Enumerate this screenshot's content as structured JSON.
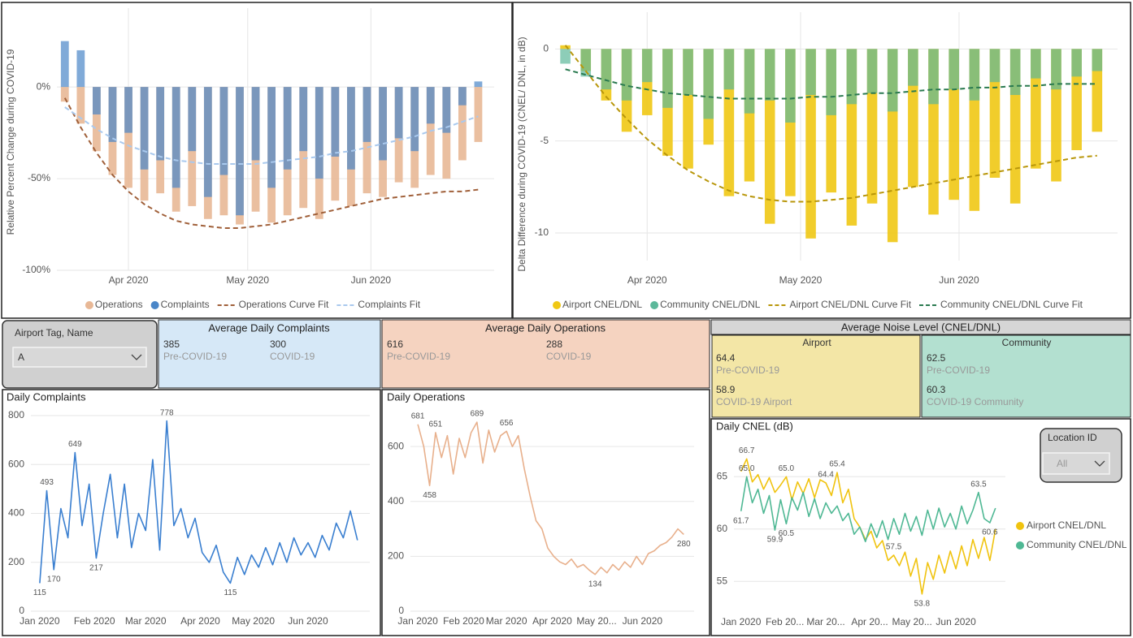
{
  "chart_data": [
    {
      "type": "bar",
      "ylabel": "Relative Percent Change during COVID-19",
      "x": [
        76,
        80,
        84,
        88,
        92,
        96,
        100,
        104,
        108,
        112,
        116,
        120,
        124,
        128,
        132,
        136,
        140,
        144,
        148,
        152,
        156,
        160,
        164,
        168,
        172,
        176,
        180
      ],
      "xlim": [
        74,
        184
      ],
      "xticks": [
        {
          "value": 92,
          "label": "Apr 2020"
        },
        {
          "value": 122,
          "label": "May 2020"
        },
        {
          "value": 153,
          "label": "Jun 2020"
        }
      ],
      "ylim": [
        -100,
        43
      ],
      "yticks": [
        {
          "value": 0,
          "label": "0%"
        },
        {
          "value": -50,
          "label": "-50%"
        },
        {
          "value": -100,
          "label": "-100%"
        }
      ],
      "grid": true,
      "xgrid": true,
      "legend": "bottom",
      "series": [
        {
          "name": "Operations",
          "type": "bar",
          "color": "#e8b896",
          "values": [
            -8,
            -20,
            -35,
            -48,
            -55,
            -62,
            -58,
            -68,
            -65,
            -72,
            -70,
            -75,
            -68,
            -74,
            -70,
            -66,
            -72,
            -62,
            -65,
            -58,
            -60,
            -52,
            -55,
            -48,
            -50,
            -40,
            -30
          ]
        },
        {
          "name": "Complaints",
          "type": "bar",
          "color": "#4a86c8",
          "values": [
            25,
            20,
            -15,
            -30,
            -25,
            -45,
            -40,
            -55,
            -35,
            -60,
            -48,
            -70,
            -40,
            -55,
            -45,
            -35,
            -50,
            -38,
            -45,
            -30,
            -40,
            -28,
            -35,
            -20,
            -25,
            -10,
            3
          ]
        },
        {
          "name": "Operations Curve Fit",
          "type": "line",
          "dashed": true,
          "color": "#a0603a",
          "values": [
            -6,
            -22,
            -36,
            -48,
            -57,
            -64,
            -69,
            -73,
            -75,
            -76,
            -77,
            -77,
            -76,
            -75,
            -73,
            -71,
            -69,
            -67,
            -65,
            -63,
            -61,
            -60,
            -59,
            -58,
            -57,
            -57,
            -56
          ]
        },
        {
          "name": "Complaints Fit",
          "type": "line",
          "dashed": true,
          "color": "#a9c9ee",
          "values": [
            -11,
            -17,
            -23,
            -28,
            -32,
            -35,
            -38,
            -40,
            -41,
            -42,
            -42,
            -42,
            -42,
            -41,
            -40,
            -39,
            -38,
            -36,
            -35,
            -33,
            -31,
            -29,
            -27,
            -24,
            -22,
            -19,
            -16
          ]
        }
      ]
    },
    {
      "type": "bar",
      "ylabel": "Delta Difference during COVID-19 (CNEL/ DNL, in dB)",
      "x": [
        76,
        80,
        84,
        88,
        92,
        96,
        100,
        104,
        108,
        112,
        116,
        120,
        124,
        128,
        132,
        136,
        140,
        144,
        148,
        152,
        156,
        160,
        164,
        168,
        172,
        176,
        180
      ],
      "xlim": [
        74,
        184
      ],
      "xticks": [
        {
          "value": 92,
          "label": "Apr 2020"
        },
        {
          "value": 122,
          "label": "May 2020"
        },
        {
          "value": 153,
          "label": "Jun 2020"
        }
      ],
      "ylim": [
        -11.5,
        2
      ],
      "yticks": [
        0,
        -5,
        -10
      ],
      "grid": true,
      "xgrid": true,
      "legend": "bottom",
      "series": [
        {
          "name": "Airport CNEL/DNL",
          "type": "bar",
          "color": "#f0c814",
          "values": [
            0.2,
            -1.2,
            -2.8,
            -4.5,
            -3.6,
            -5.8,
            -6.5,
            -5.2,
            -8,
            -7.2,
            -9.5,
            -8,
            -10.3,
            -7.8,
            -9.6,
            -8.4,
            -10.5,
            -7.5,
            -9,
            -8.2,
            -8.8,
            -7,
            -8.4,
            -6.5,
            -7.2,
            -5.5,
            -4.5
          ]
        },
        {
          "name": "Community CNEL/DNL",
          "type": "bar",
          "color": "#5cb89a",
          "values": [
            -0.8,
            -1.5,
            -2.2,
            -2.8,
            -1.8,
            -3.2,
            -2.5,
            -3.8,
            -2.2,
            -3.5,
            -2.8,
            -4,
            -2.5,
            -3.6,
            -3,
            -2.4,
            -3.4,
            -2,
            -3,
            -2.2,
            -2.8,
            -1.8,
            -2.5,
            -1.6,
            -2.2,
            -1.5,
            -1.2
          ]
        },
        {
          "name": "Airport CNEL/DNL Curve Fit",
          "type": "line",
          "dashed": true,
          "color": "#b8960a",
          "values": [
            0.2,
            -1.2,
            -2.6,
            -3.8,
            -4.9,
            -5.8,
            -6.6,
            -7.2,
            -7.7,
            -8,
            -8.2,
            -8.3,
            -8.3,
            -8.2,
            -8.1,
            -7.9,
            -7.7,
            -7.5,
            -7.3,
            -7.1,
            -6.9,
            -6.7,
            -6.5,
            -6.3,
            -6.1,
            -5.9,
            -5.8
          ]
        },
        {
          "name": "Community CNEL/DNL Curve Fit",
          "type": "line",
          "dashed": true,
          "color": "#2a7a50",
          "values": [
            -1.1,
            -1.4,
            -1.7,
            -2,
            -2.2,
            -2.4,
            -2.5,
            -2.6,
            -2.7,
            -2.7,
            -2.7,
            -2.7,
            -2.6,
            -2.6,
            -2.5,
            -2.4,
            -2.4,
            -2.3,
            -2.2,
            -2.2,
            -2.1,
            -2.1,
            -2,
            -2,
            -1.9,
            -1.9,
            -1.9
          ]
        }
      ]
    },
    {
      "type": "line",
      "title": "Daily Complaints",
      "x": [
        1,
        5,
        9,
        13,
        17,
        21,
        25,
        29,
        33,
        37,
        41,
        45,
        49,
        53,
        57,
        61,
        65,
        69,
        73,
        77,
        81,
        85,
        89,
        93,
        97,
        101,
        105,
        109,
        113,
        117,
        121,
        125,
        129,
        133,
        137,
        141,
        145,
        149,
        153,
        157,
        161,
        165,
        169,
        173,
        177,
        181
      ],
      "xlim": [
        -4,
        188
      ],
      "xticks": [
        {
          "value": 1,
          "label": "Jan 2020"
        },
        {
          "value": 32,
          "label": "Feb 2020"
        },
        {
          "value": 61,
          "label": "Mar 2020"
        },
        {
          "value": 92,
          "label": "Apr 2020"
        },
        {
          "value": 122,
          "label": "May 2020"
        },
        {
          "value": 153,
          "label": "Jun 2020"
        }
      ],
      "ylim": [
        0,
        800
      ],
      "yticks": [
        0,
        200,
        400,
        600,
        800
      ],
      "grid": true,
      "series": [
        {
          "color": "#3a7fd0",
          "values": [
            115,
            493,
            170,
            420,
            300,
            649,
            350,
            520,
            217,
            400,
            560,
            300,
            520,
            260,
            400,
            330,
            620,
            250,
            778,
            350,
            420,
            300,
            380,
            240,
            200,
            270,
            160,
            115,
            220,
            150,
            230,
            180,
            260,
            190,
            280,
            200,
            300,
            230,
            280,
            220,
            310,
            250,
            360,
            300,
            410,
            290
          ],
          "value_labels": [
            "115",
            "493",
            "170",
            null,
            null,
            "649",
            null,
            null,
            "217",
            null,
            null,
            null,
            null,
            null,
            null,
            null,
            null,
            null,
            "778",
            null,
            null,
            null,
            null,
            null,
            null,
            null,
            null,
            "115",
            null,
            null,
            null,
            null,
            null,
            null,
            null,
            null,
            null,
            null,
            null,
            null,
            null,
            null,
            null,
            null,
            null,
            null
          ]
        }
      ]
    },
    {
      "type": "line",
      "title": "Daily Operations",
      "x": [
        1,
        5,
        9,
        13,
        17,
        21,
        25,
        29,
        33,
        37,
        41,
        45,
        49,
        53,
        57,
        61,
        65,
        69,
        73,
        77,
        81,
        85,
        89,
        93,
        97,
        101,
        105,
        109,
        113,
        117,
        121,
        125,
        129,
        133,
        137,
        141,
        145,
        149,
        153,
        157,
        161,
        165,
        169,
        173,
        177,
        181
      ],
      "xlim": [
        -4,
        188
      ],
      "xticks": [
        {
          "value": 1,
          "label": "Jan 2020"
        },
        {
          "value": 32,
          "label": "Feb 2020"
        },
        {
          "value": 61,
          "label": "Mar 2020"
        },
        {
          "value": 92,
          "label": "Apr 2020"
        },
        {
          "value": 122,
          "label": "May 20..."
        },
        {
          "value": 153,
          "label": "Jun 2020"
        }
      ],
      "ylim": [
        0,
        710
      ],
      "yticks": [
        0,
        200,
        400,
        600
      ],
      "grid": true,
      "series": [
        {
          "color": "#e8b08c",
          "values": [
            681,
            600,
            458,
            651,
            560,
            640,
            500,
            630,
            560,
            650,
            689,
            540,
            660,
            580,
            640,
            656,
            600,
            640,
            520,
            420,
            330,
            300,
            230,
            200,
            180,
            170,
            190,
            160,
            170,
            150,
            134,
            160,
            140,
            170,
            150,
            180,
            160,
            200,
            170,
            210,
            220,
            240,
            250,
            270,
            300,
            280
          ],
          "value_labels": [
            "681",
            null,
            "458",
            "651",
            null,
            null,
            null,
            null,
            null,
            null,
            "689",
            null,
            null,
            null,
            null,
            "656",
            null,
            null,
            null,
            null,
            null,
            null,
            null,
            null,
            null,
            null,
            null,
            null,
            null,
            null,
            "134",
            null,
            null,
            null,
            null,
            null,
            null,
            null,
            null,
            null,
            null,
            null,
            null,
            null,
            null,
            "280"
          ]
        }
      ]
    },
    {
      "type": "line",
      "title": "Daily CNEL (dB)",
      "x": [
        1,
        5,
        9,
        13,
        17,
        21,
        25,
        29,
        33,
        37,
        41,
        45,
        49,
        53,
        57,
        61,
        65,
        69,
        73,
        77,
        81,
        85,
        89,
        93,
        97,
        101,
        105,
        109,
        113,
        117,
        121,
        125,
        129,
        133,
        137,
        141,
        145,
        149,
        153,
        157,
        161,
        165,
        169,
        173,
        177,
        181
      ],
      "xlim": [
        -4,
        188
      ],
      "xticks": [
        {
          "value": 1,
          "label": "Jan 2020"
        },
        {
          "value": 32,
          "label": "Feb 20..."
        },
        {
          "value": 61,
          "label": "Mar 20..."
        },
        {
          "value": 92,
          "label": "Apr 20..."
        },
        {
          "value": 122,
          "label": "May 20..."
        },
        {
          "value": 153,
          "label": "Jun 2020"
        }
      ],
      "ylim": [
        52,
        67.5
      ],
      "yticks": [
        55,
        60,
        65
      ],
      "grid": true,
      "legend": "right",
      "series": [
        {
          "name": "Airport CNEL/DNL",
          "color": "#f0c30f",
          "values": [
            65.5,
            66.7,
            64.5,
            65.2,
            63.8,
            64.9,
            63.5,
            64.2,
            65,
            62.8,
            64.5,
            63.4,
            64.8,
            63,
            64.7,
            64.4,
            63.2,
            65.4,
            62.5,
            63.8,
            61,
            60.2,
            59,
            59.8,
            58.2,
            58.9,
            57,
            57.5,
            56.5,
            57.8,
            55.5,
            57.2,
            53.8,
            56.8,
            55.2,
            57.5,
            55.8,
            57.9,
            56.2,
            58.4,
            56.5,
            59,
            57.2,
            59.2,
            57,
            60
          ],
          "value_labels": [
            null,
            "66.7",
            null,
            null,
            null,
            null,
            null,
            null,
            "65.0",
            null,
            null,
            null,
            null,
            null,
            null,
            "64.4",
            null,
            "65.4",
            null,
            null,
            null,
            null,
            null,
            null,
            null,
            null,
            null,
            "57.5",
            null,
            null,
            null,
            null,
            "53.8",
            null,
            null,
            null,
            null,
            null,
            null,
            null,
            null,
            null,
            null,
            null,
            null,
            null
          ]
        },
        {
          "name": "Community CNEL/DNL",
          "color": "#4fb894",
          "values": [
            61.7,
            65,
            62.5,
            63.8,
            61.5,
            63.2,
            59.9,
            62.8,
            60.5,
            63,
            61.8,
            63.5,
            61.2,
            62.9,
            61,
            62.5,
            61.5,
            62.2,
            60.8,
            61.5,
            59.5,
            60.2,
            58.8,
            60.5,
            59.2,
            60.8,
            59,
            61,
            59.5,
            61.5,
            59.8,
            61.2,
            59.4,
            61.8,
            60,
            62,
            60.2,
            61.5,
            60,
            62.2,
            60.5,
            61.8,
            63.5,
            61,
            60.6,
            62
          ],
          "value_labels": [
            "61.7",
            "65.0",
            null,
            null,
            null,
            null,
            "59.9",
            null,
            "60.5",
            null,
            null,
            null,
            null,
            null,
            null,
            null,
            null,
            null,
            null,
            null,
            null,
            null,
            null,
            null,
            null,
            null,
            null,
            null,
            null,
            null,
            null,
            null,
            null,
            null,
            null,
            null,
            null,
            null,
            null,
            null,
            null,
            null,
            "63.5",
            null,
            "60.6",
            null
          ]
        }
      ]
    }
  ],
  "slicers": [
    {
      "label": "Airport Tag, Name",
      "value": "A"
    },
    {
      "label": "Location ID",
      "value": "All"
    }
  ],
  "cards": [
    {
      "title": "Average Daily Complaints",
      "items": [
        {
          "value": 385,
          "label": "Pre-COVID-19"
        },
        {
          "value": 300,
          "label": "COVID-19"
        }
      ]
    },
    {
      "title": "Average Daily Operations",
      "items": [
        {
          "value": 616,
          "label": "Pre-COVID-19"
        },
        {
          "value": 288,
          "label": "COVID-19"
        }
      ]
    }
  ],
  "noise_level": {
    "title": "Average Noise Level (CNEL/DNL)",
    "groups": [
      {
        "name": "Airport",
        "items": [
          {
            "value": 64.4,
            "label": "Pre-COVID-19"
          },
          {
            "value": 58.9,
            "label": "COVID-19 Airport"
          }
        ]
      },
      {
        "name": "Community",
        "items": [
          {
            "value": 62.5,
            "label": "Pre-COVID-19"
          },
          {
            "value": 60.3,
            "label": "COVID-19 Community"
          }
        ]
      }
    ]
  }
}
